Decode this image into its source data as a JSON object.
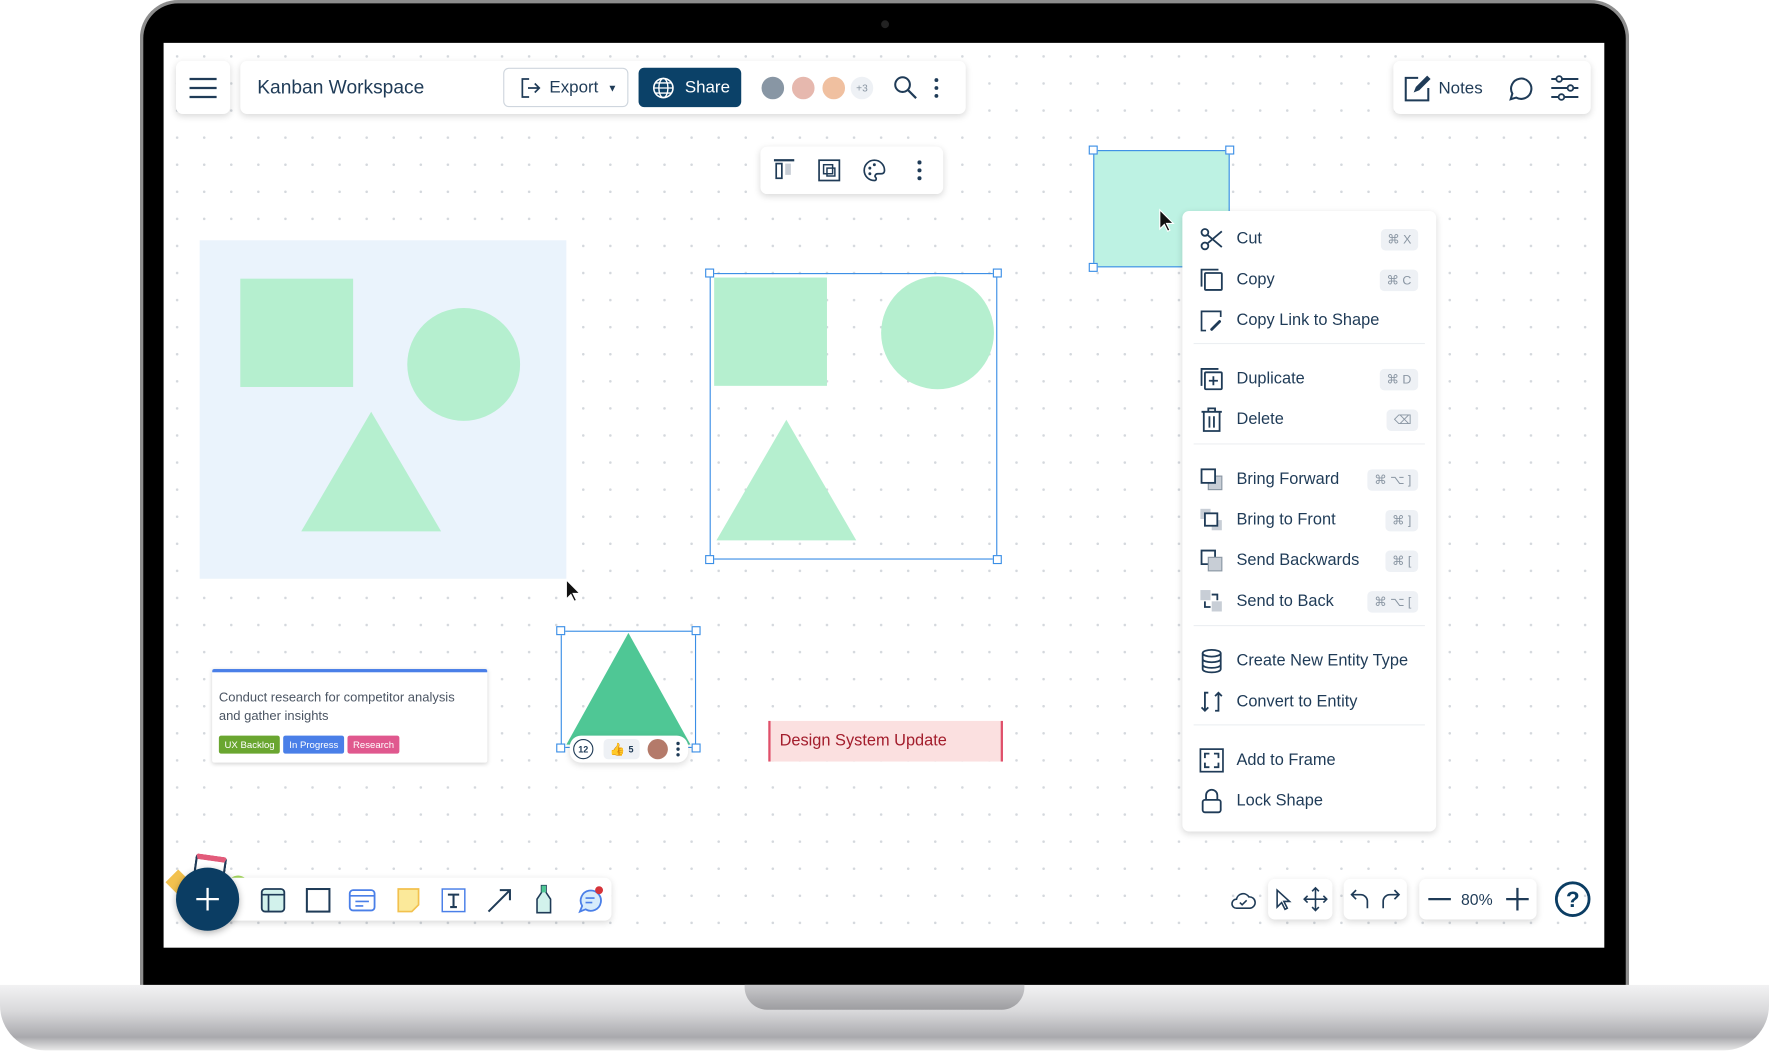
{
  "header": {
    "title": "Kanban Workspace",
    "export_label": "Export",
    "share_label": "Share",
    "collaborators_more": "+3",
    "notes_label": "Notes"
  },
  "colors": {
    "brand": "#0b4168",
    "selection": "#3a8ee6",
    "shape_fill": "#b5efcf",
    "frame_fill": "#eaf3fc",
    "selected_rect": "#bdf2e3",
    "triangle": "#4fc795"
  },
  "context_menu": {
    "groups": [
      [
        {
          "label": "Cut",
          "shortcut": "⌘ X",
          "icon": "scissors-icon"
        },
        {
          "label": "Copy",
          "shortcut": "⌘ C",
          "icon": "copy-icon"
        },
        {
          "label": "Copy Link to Shape",
          "shortcut": "",
          "icon": "link-icon"
        }
      ],
      [
        {
          "label": "Duplicate",
          "shortcut": "⌘ D",
          "icon": "duplicate-icon"
        },
        {
          "label": "Delete",
          "shortcut": "⌫",
          "icon": "trash-icon"
        }
      ],
      [
        {
          "label": "Bring Forward",
          "shortcut": "⌘ ⌥ ]",
          "icon": "bring-forward-icon"
        },
        {
          "label": "Bring to Front",
          "shortcut": "⌘ ]",
          "icon": "bring-front-icon"
        },
        {
          "label": "Send Backwards",
          "shortcut": "⌘ [",
          "icon": "send-backwards-icon"
        },
        {
          "label": "Send to Back",
          "shortcut": "⌘ ⌥ [",
          "icon": "send-back-icon"
        }
      ],
      [
        {
          "label": "Create New Entity Type",
          "shortcut": "",
          "icon": "database-icon"
        },
        {
          "label": "Convert to Entity",
          "shortcut": "",
          "icon": "convert-icon"
        }
      ],
      [
        {
          "label": "Add to Frame",
          "shortcut": "",
          "icon": "frame-icon"
        },
        {
          "label": "Lock Shape",
          "shortcut": "",
          "icon": "lock-icon"
        }
      ]
    ]
  },
  "card": {
    "text": "Conduct research for competitor analysis and gather insights",
    "tags": [
      {
        "label": "UX Backlog",
        "color": "#6aa630"
      },
      {
        "label": "In Progress",
        "color": "#4a7fe8"
      },
      {
        "label": "Research",
        "color": "#e0588e"
      }
    ]
  },
  "shape_bar": {
    "comments": "12",
    "likes": "5"
  },
  "label_shape": {
    "text": "Design System Update"
  },
  "zoom": {
    "level": "80%"
  }
}
